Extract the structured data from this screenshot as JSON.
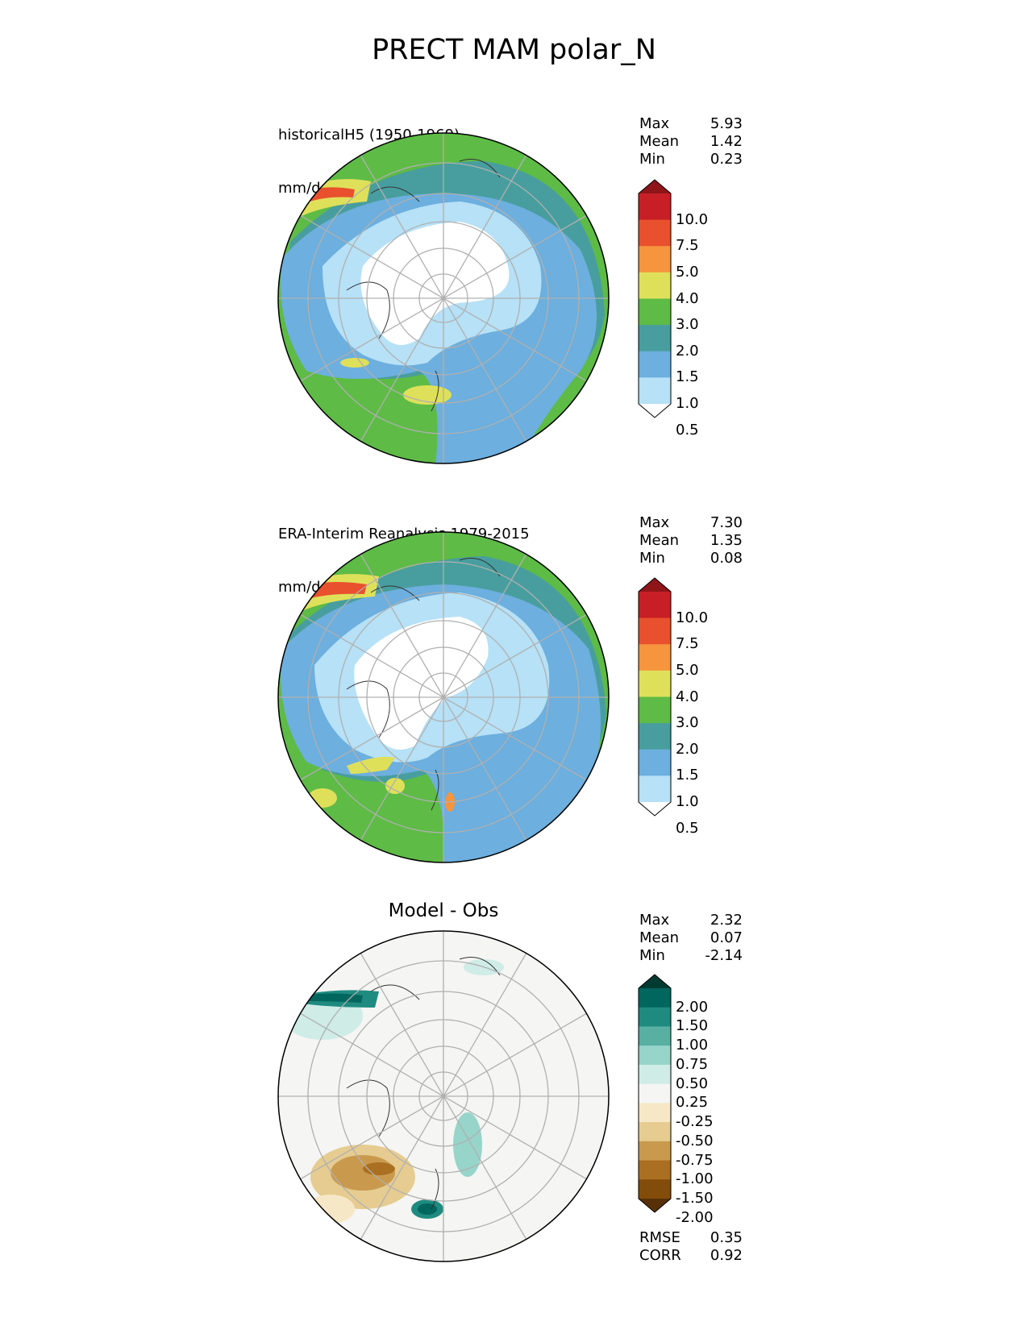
{
  "title": "PRECT MAM polar_N",
  "panels": [
    {
      "label_line1": "historicalH5 (1950-1969)",
      "label_line2": "mm/day",
      "stats": [
        {
          "name": "Max",
          "value": "5.93"
        },
        {
          "name": "Mean",
          "value": "1.42"
        },
        {
          "name": "Min",
          "value": "0.23"
        }
      ]
    },
    {
      "label_line1": "ERA-Interim Reanalysis 1979-2015",
      "label_line2": "mm/day",
      "stats": [
        {
          "name": "Max",
          "value": "7.30"
        },
        {
          "name": "Mean",
          "value": "1.35"
        },
        {
          "name": "Min",
          "value": "0.08"
        }
      ]
    },
    {
      "center_title": "Model - Obs",
      "stats": [
        {
          "name": "Max",
          "value": "2.32"
        },
        {
          "name": "Mean",
          "value": "0.07"
        },
        {
          "name": "Min",
          "value": "-2.14"
        }
      ],
      "metrics": [
        {
          "name": "RMSE",
          "value": "0.35"
        },
        {
          "name": "CORR",
          "value": "0.92"
        }
      ]
    }
  ],
  "colorbar_abs": {
    "labels": [
      "10.0",
      "7.5",
      "5.0",
      "4.0",
      "3.0",
      "2.0",
      "1.5",
      "1.0",
      "0.5"
    ],
    "colors_top_to_bottom": [
      "#8f1519",
      "#c81f26",
      "#e8502e",
      "#f6953e",
      "#dfe05a",
      "#5ebb46",
      "#489e9e",
      "#6dafde",
      "#b6e1f6",
      "#ffffff"
    ]
  },
  "colorbar_diff": {
    "labels": [
      "2.00",
      "1.50",
      "1.00",
      "0.75",
      "0.50",
      "0.25",
      "-0.25",
      "-0.50",
      "-0.75",
      "-1.00",
      "-1.50",
      "-2.00"
    ],
    "colors_top_to_bottom": [
      "#013a30",
      "#01665e",
      "#1f8b80",
      "#58b0a3",
      "#97d4c9",
      "#cfece7",
      "#f5f5f3",
      "#f6e8c7",
      "#e6cc91",
      "#c99a4e",
      "#ab6f22",
      "#824c0a",
      "#573008"
    ]
  }
}
